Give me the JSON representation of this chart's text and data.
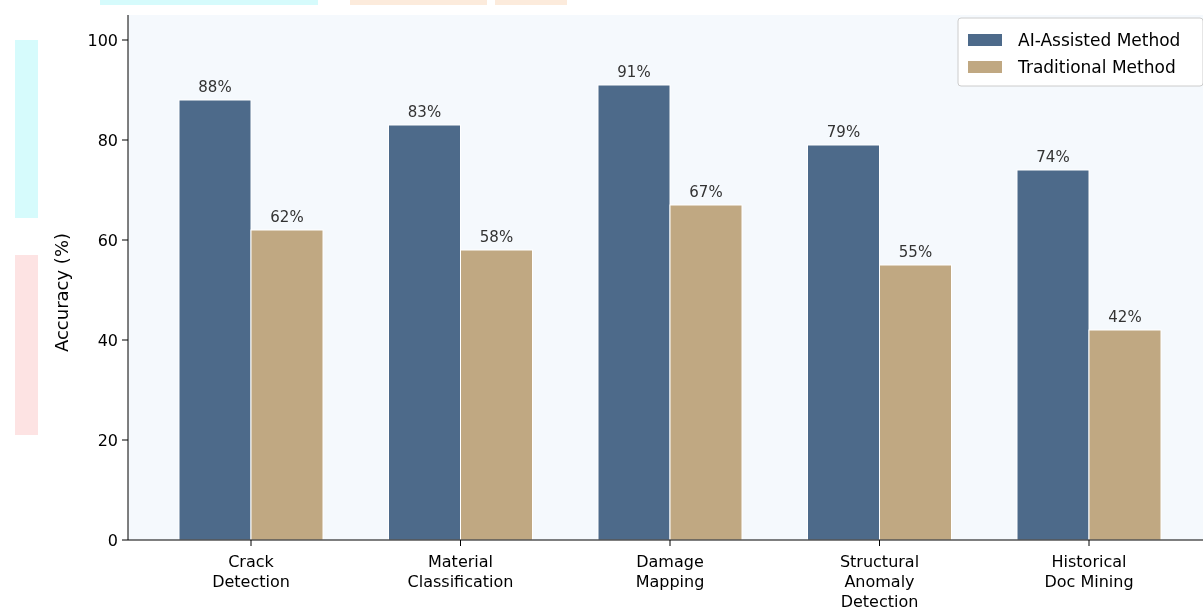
{
  "chart_data": {
    "type": "bar",
    "ylabel": "Accuracy (%)",
    "categories": [
      "Crack\nDetection",
      "Material\nClassification",
      "Damage\nMapping",
      "Structural\nAnomaly\nDetection",
      "Historical\nDoc Mining"
    ],
    "series": [
      {
        "name": "AI-Assisted Method",
        "color": "#4d6a8a",
        "values": [
          88,
          83,
          91,
          79,
          74
        ],
        "value_labels": [
          "88%",
          "83%",
          "91%",
          "79%",
          "74%"
        ]
      },
      {
        "name": "Traditional Method",
        "color": "#c0a882",
        "values": [
          62,
          58,
          67,
          55,
          42
        ],
        "value_labels": [
          "62%",
          "58%",
          "67%",
          "55%",
          "42%"
        ]
      }
    ],
    "ylim": [
      0,
      105
    ],
    "yticks": [
      0,
      20,
      40,
      60,
      80,
      100
    ],
    "grid": false,
    "legend": "top right"
  }
}
